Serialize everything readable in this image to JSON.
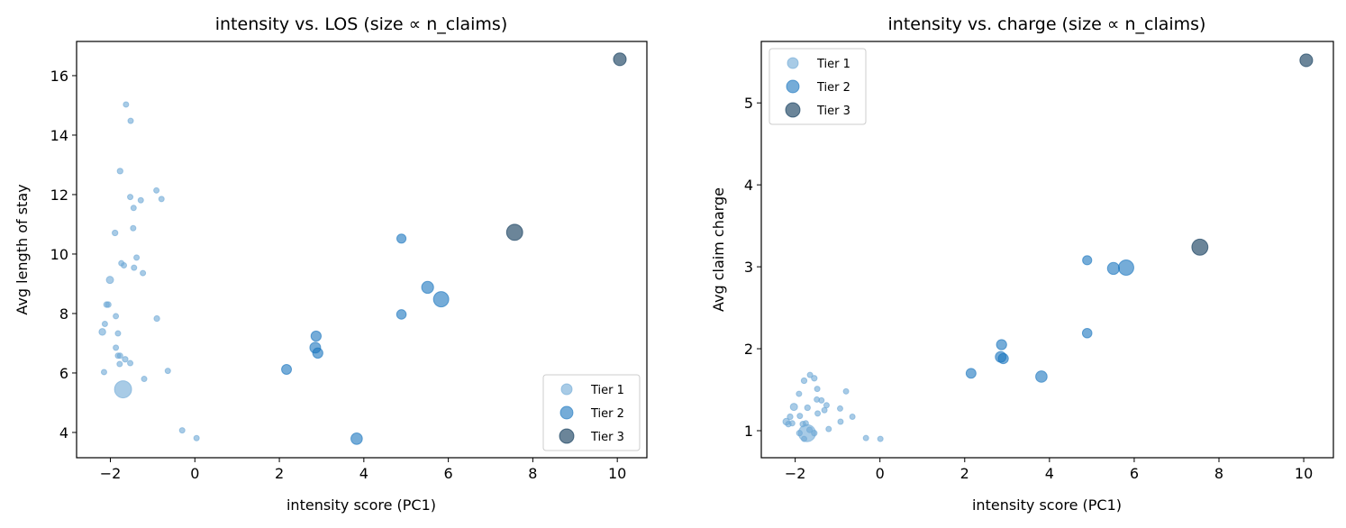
{
  "chart_data": [
    {
      "type": "scatter",
      "title": "intensity vs. LOS (size ∝ n_claims)",
      "xlabel": "intensity score (PC1)",
      "ylabel": "Avg length of stay",
      "xlim": [
        -2.8,
        10.7
      ],
      "ylim": [
        3.15,
        17.15
      ],
      "xticks": [
        -2,
        0,
        2,
        4,
        6,
        8,
        10
      ],
      "yticks": [
        4,
        6,
        8,
        10,
        12,
        14,
        16
      ],
      "grid": false,
      "legend": {
        "placement": "lower-right",
        "entries": [
          "Tier 1",
          "Tier 2",
          "Tier 3"
        ]
      },
      "tier_colors": {
        "Tier 1": "#6ea8d5",
        "Tier 2": "#1975be",
        "Tier 3": "#083455"
      },
      "series": [
        {
          "name": "Tier 1",
          "points": [
            {
              "x": -1.63,
              "y": 15.03,
              "n_claims": 9
            },
            {
              "x": -1.52,
              "y": 14.48,
              "n_claims": 9
            },
            {
              "x": -1.77,
              "y": 12.79,
              "n_claims": 10
            },
            {
              "x": -0.91,
              "y": 12.14,
              "n_claims": 9
            },
            {
              "x": -1.53,
              "y": 11.92,
              "n_claims": 9
            },
            {
              "x": -0.79,
              "y": 11.85,
              "n_claims": 9
            },
            {
              "x": -1.28,
              "y": 11.81,
              "n_claims": 9
            },
            {
              "x": -1.45,
              "y": 11.55,
              "n_claims": 9
            },
            {
              "x": -1.46,
              "y": 10.87,
              "n_claims": 9
            },
            {
              "x": -1.89,
              "y": 10.71,
              "n_claims": 10
            },
            {
              "x": -1.38,
              "y": 9.88,
              "n_claims": 9
            },
            {
              "x": -1.74,
              "y": 9.69,
              "n_claims": 9
            },
            {
              "x": -1.68,
              "y": 9.62,
              "n_claims": 9
            },
            {
              "x": -1.44,
              "y": 9.54,
              "n_claims": 9
            },
            {
              "x": -1.23,
              "y": 9.36,
              "n_claims": 9
            },
            {
              "x": -2.01,
              "y": 9.13,
              "n_claims": 16
            },
            {
              "x": -2.09,
              "y": 8.3,
              "n_claims": 10
            },
            {
              "x": -2.05,
              "y": 8.3,
              "n_claims": 10
            },
            {
              "x": -1.87,
              "y": 7.91,
              "n_claims": 9
            },
            {
              "x": -0.9,
              "y": 7.83,
              "n_claims": 10
            },
            {
              "x": -2.13,
              "y": 7.65,
              "n_claims": 9
            },
            {
              "x": -2.19,
              "y": 7.38,
              "n_claims": 14
            },
            {
              "x": -1.82,
              "y": 7.33,
              "n_claims": 9
            },
            {
              "x": -1.87,
              "y": 6.85,
              "n_claims": 9
            },
            {
              "x": -1.82,
              "y": 6.58,
              "n_claims": 9
            },
            {
              "x": -1.77,
              "y": 6.58,
              "n_claims": 9
            },
            {
              "x": -1.65,
              "y": 6.46,
              "n_claims": 10
            },
            {
              "x": -1.78,
              "y": 6.3,
              "n_claims": 9
            },
            {
              "x": -1.53,
              "y": 6.33,
              "n_claims": 9
            },
            {
              "x": -2.15,
              "y": 6.03,
              "n_claims": 9
            },
            {
              "x": -0.64,
              "y": 6.07,
              "n_claims": 9
            },
            {
              "x": -1.2,
              "y": 5.8,
              "n_claims": 9
            },
            {
              "x": -1.7,
              "y": 5.45,
              "n_claims": 90
            },
            {
              "x": -0.3,
              "y": 4.07,
              "n_claims": 9
            },
            {
              "x": 0.04,
              "y": 3.81,
              "n_claims": 9
            }
          ]
        },
        {
          "name": "Tier 2",
          "points": [
            {
              "x": 2.17,
              "y": 6.12,
              "n_claims": 30
            },
            {
              "x": 2.87,
              "y": 7.24,
              "n_claims": 32
            },
            {
              "x": 2.85,
              "y": 6.85,
              "n_claims": 36
            },
            {
              "x": 2.91,
              "y": 6.67,
              "n_claims": 32
            },
            {
              "x": 3.83,
              "y": 3.79,
              "n_claims": 40
            },
            {
              "x": 4.89,
              "y": 10.52,
              "n_claims": 26
            },
            {
              "x": 4.89,
              "y": 7.97,
              "n_claims": 28
            },
            {
              "x": 5.51,
              "y": 8.88,
              "n_claims": 44
            },
            {
              "x": 5.83,
              "y": 8.48,
              "n_claims": 72
            }
          ]
        },
        {
          "name": "Tier 3",
          "points": [
            {
              "x": 7.57,
              "y": 10.73,
              "n_claims": 80
            },
            {
              "x": 10.06,
              "y": 16.55,
              "n_claims": 50
            }
          ]
        }
      ]
    },
    {
      "type": "scatter",
      "title": "intensity vs. charge (size ∝ n_claims)",
      "xlabel": "intensity score (PC1)",
      "ylabel": "Avg claim charge",
      "xlim": [
        -2.8,
        10.7
      ],
      "ylim": [
        0.67,
        5.75
      ],
      "xticks": [
        -2,
        0,
        2,
        4,
        6,
        8,
        10
      ],
      "yticks": [
        1,
        2,
        3,
        4,
        5
      ],
      "grid": false,
      "legend": {
        "placement": "upper-left",
        "entries": [
          "Tier 1",
          "Tier 2",
          "Tier 3"
        ]
      },
      "tier_colors": {
        "Tier 1": "#6ea8d5",
        "Tier 2": "#1975be",
        "Tier 3": "#083455"
      },
      "series": [
        {
          "name": "Tier 1",
          "points": [
            {
              "x": -1.65,
              "y": 1.68,
              "n_claims": 9
            },
            {
              "x": -1.55,
              "y": 1.64,
              "n_claims": 10
            },
            {
              "x": -1.79,
              "y": 1.61,
              "n_claims": 10
            },
            {
              "x": -1.48,
              "y": 1.51,
              "n_claims": 9
            },
            {
              "x": -0.8,
              "y": 1.48,
              "n_claims": 9
            },
            {
              "x": -1.91,
              "y": 1.45,
              "n_claims": 9
            },
            {
              "x": -1.49,
              "y": 1.38,
              "n_claims": 9
            },
            {
              "x": -1.38,
              "y": 1.37,
              "n_claims": 9
            },
            {
              "x": -1.26,
              "y": 1.31,
              "n_claims": 9
            },
            {
              "x": -2.03,
              "y": 1.29,
              "n_claims": 16
            },
            {
              "x": -1.71,
              "y": 1.28,
              "n_claims": 10
            },
            {
              "x": -0.94,
              "y": 1.27,
              "n_claims": 9
            },
            {
              "x": -1.31,
              "y": 1.25,
              "n_claims": 9
            },
            {
              "x": -1.47,
              "y": 1.21,
              "n_claims": 9
            },
            {
              "x": -0.65,
              "y": 1.17,
              "n_claims": 9
            },
            {
              "x": -1.89,
              "y": 1.18,
              "n_claims": 9
            },
            {
              "x": -2.12,
              "y": 1.17,
              "n_claims": 10
            },
            {
              "x": -2.21,
              "y": 1.11,
              "n_claims": 14
            },
            {
              "x": -2.16,
              "y": 1.08,
              "n_claims": 10
            },
            {
              "x": -2.07,
              "y": 1.09,
              "n_claims": 9
            },
            {
              "x": -0.93,
              "y": 1.11,
              "n_claims": 9
            },
            {
              "x": -1.82,
              "y": 1.08,
              "n_claims": 10
            },
            {
              "x": -1.75,
              "y": 1.09,
              "n_claims": 9
            },
            {
              "x": -1.21,
              "y": 1.02,
              "n_claims": 9
            },
            {
              "x": -1.9,
              "y": 0.97,
              "n_claims": 10
            },
            {
              "x": -1.55,
              "y": 0.97,
              "n_claims": 10
            },
            {
              "x": -1.66,
              "y": 1.01,
              "n_claims": 10
            },
            {
              "x": -1.79,
              "y": 0.9,
              "n_claims": 9
            },
            {
              "x": -1.72,
              "y": 0.97,
              "n_claims": 90
            },
            {
              "x": -0.33,
              "y": 0.91,
              "n_claims": 9
            },
            {
              "x": 0.01,
              "y": 0.9,
              "n_claims": 9
            }
          ]
        },
        {
          "name": "Tier 2",
          "points": [
            {
              "x": 2.15,
              "y": 1.7,
              "n_claims": 30
            },
            {
              "x": 2.87,
              "y": 2.05,
              "n_claims": 32
            },
            {
              "x": 2.85,
              "y": 1.9,
              "n_claims": 36
            },
            {
              "x": 2.91,
              "y": 1.88,
              "n_claims": 32
            },
            {
              "x": 3.81,
              "y": 1.66,
              "n_claims": 40
            },
            {
              "x": 4.89,
              "y": 3.08,
              "n_claims": 26
            },
            {
              "x": 4.89,
              "y": 2.19,
              "n_claims": 28
            },
            {
              "x": 5.51,
              "y": 2.98,
              "n_claims": 44
            },
            {
              "x": 5.81,
              "y": 2.99,
              "n_claims": 72
            }
          ]
        },
        {
          "name": "Tier 3",
          "points": [
            {
              "x": 7.55,
              "y": 3.24,
              "n_claims": 80
            },
            {
              "x": 10.06,
              "y": 5.52,
              "n_claims": 50
            }
          ]
        }
      ]
    }
  ]
}
